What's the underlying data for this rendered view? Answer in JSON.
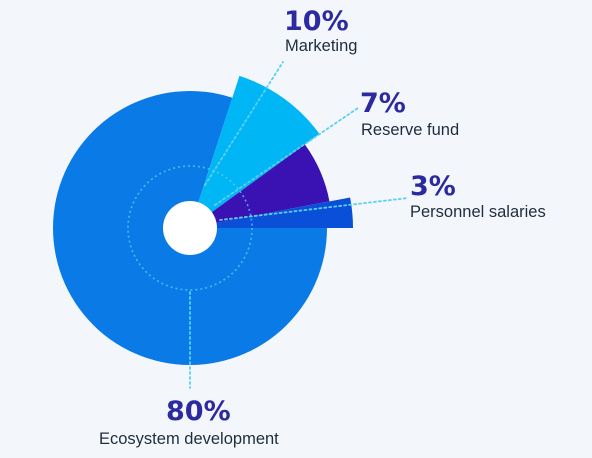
{
  "chart_data": {
    "type": "pie",
    "title": "",
    "slices": [
      {
        "label": "Ecosystem development",
        "value": 80,
        "display": "80%",
        "color": "#0a7ae6"
      },
      {
        "label": "Marketing",
        "value": 10,
        "display": "10%",
        "color": "#00b6f4"
      },
      {
        "label": "Reserve fund",
        "value": 7,
        "display": "7%",
        "color": "#3a12b4"
      },
      {
        "label": "Personnel salaries",
        "value": 3,
        "display": "3%",
        "color": "#0a4fd8"
      }
    ],
    "leader_line_color": "#5ad0f5",
    "label_color": "#2c2a9e"
  }
}
